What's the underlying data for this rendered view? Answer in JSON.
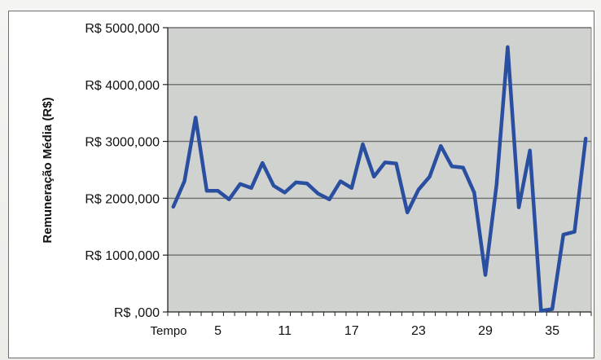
{
  "chart_data": {
    "type": "line",
    "title": "",
    "ylabel": "Remuneração Média (R$)",
    "xlabel": "Tempo",
    "ylim": [
      0,
      5000
    ],
    "y_ticks": [
      {
        "value": 0,
        "label": "R$ ,000"
      },
      {
        "value": 1000,
        "label": "R$ 1000,000"
      },
      {
        "value": 2000,
        "label": "R$ 2000,000"
      },
      {
        "value": 3000,
        "label": "R$ 3000,000"
      },
      {
        "value": 4000,
        "label": "R$ 4000,000"
      },
      {
        "value": 5000,
        "label": "R$ 5000,000"
      }
    ],
    "x_tick_labels": [
      {
        "index": 5,
        "label": "5"
      },
      {
        "index": 11,
        "label": "11"
      },
      {
        "index": 17,
        "label": "17"
      },
      {
        "index": 23,
        "label": "23"
      },
      {
        "index": 29,
        "label": "29"
      },
      {
        "index": 35,
        "label": "35"
      }
    ],
    "x_count": 38,
    "grid": true,
    "colors": {
      "line": "#2a4fa0",
      "plot_bg": "#cfd2cf",
      "grid": "#6e6e6e"
    },
    "series": [
      {
        "values": [
          1850,
          2300,
          3420,
          2130,
          2130,
          1980,
          2250,
          2180,
          2620,
          2220,
          2100,
          2280,
          2260,
          2080,
          1980,
          2300,
          2180,
          2950,
          2380,
          2630,
          2610,
          1750,
          2150,
          2380,
          2920,
          2560,
          2540,
          2100,
          650,
          2230,
          4660,
          1840,
          2840,
          20,
          50,
          1360,
          1410,
          3050
        ]
      }
    ]
  }
}
